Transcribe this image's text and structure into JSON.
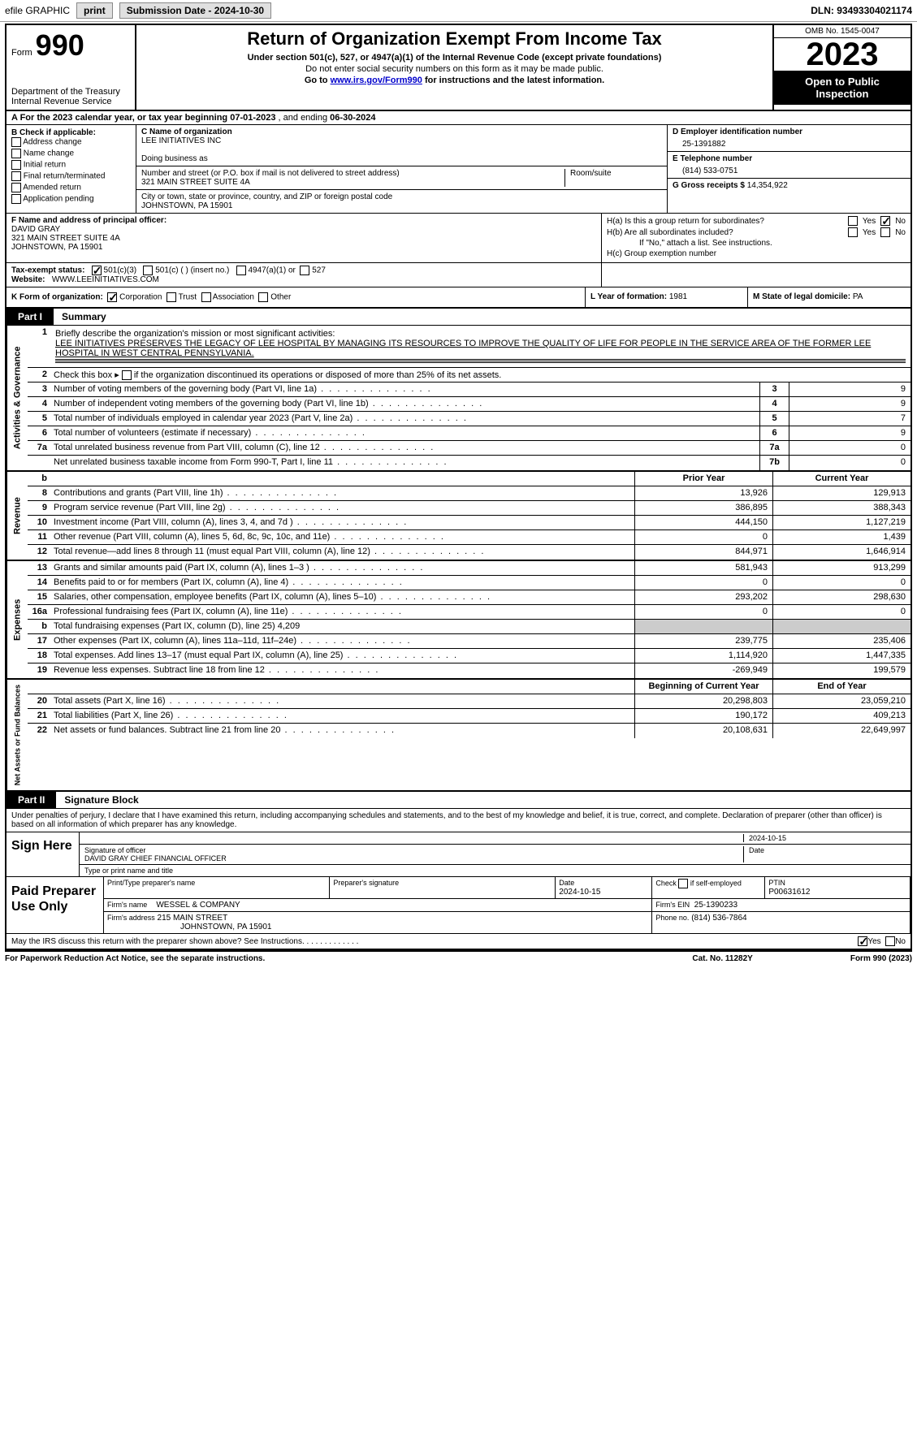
{
  "topbar": {
    "efile": "efile GRAPHIC",
    "print": "print",
    "submission": "Submission Date - 2024-10-30",
    "dln": "DLN: 93493304021174"
  },
  "header": {
    "form_label": "Form",
    "form_num": "990",
    "title": "Return of Organization Exempt From Income Tax",
    "subtitle": "Under section 501(c), 527, or 4947(a)(1) of the Internal Revenue Code (except private foundations)",
    "note1": "Do not enter social security numbers on this form as it may be made public.",
    "note2_pre": "Go to ",
    "note2_link": "www.irs.gov/Form990",
    "note2_post": " for instructions and the latest information.",
    "dept": "Department of the Treasury",
    "irs": "Internal Revenue Service",
    "omb": "OMB No. 1545-0047",
    "year": "2023",
    "open": "Open to Public Inspection"
  },
  "rowA": {
    "pre": "A For the 2023 calendar year, or tax year beginning ",
    "begin": "07-01-2023",
    "mid": " , and ending ",
    "end": "06-30-2024"
  },
  "B": {
    "label": "B Check if applicable:",
    "opts": [
      "Address change",
      "Name change",
      "Initial return",
      "Final return/terminated",
      "Amended return",
      "Application pending"
    ]
  },
  "C": {
    "name_lbl": "C Name of organization",
    "name": "LEE INITIATIVES INC",
    "dba_lbl": "Doing business as",
    "dba": "",
    "street_lbl": "Number and street (or P.O. box if mail is not delivered to street address)",
    "street": "321 MAIN STREET SUITE 4A",
    "room_lbl": "Room/suite",
    "city_lbl": "City or town, state or province, country, and ZIP or foreign postal code",
    "city": "JOHNSTOWN, PA  15901"
  },
  "D": {
    "lbl": "D Employer identification number",
    "val": "25-1391882"
  },
  "E": {
    "lbl": "E Telephone number",
    "val": "(814) 533-0751"
  },
  "G": {
    "lbl": "G Gross receipts $",
    "val": "14,354,922"
  },
  "F": {
    "lbl": "F  Name and address of principal officer:",
    "name": "DAVID GRAY",
    "addr1": "321 MAIN STREET SUITE 4A",
    "addr2": "JOHNSTOWN, PA  15901"
  },
  "H": {
    "a": "H(a)  Is this a group return for subordinates?",
    "b": "H(b)  Are all subordinates included?",
    "b_note": "If \"No,\" attach a list. See instructions.",
    "c": "H(c)  Group exemption number ",
    "yes": "Yes",
    "no": "No"
  },
  "I": {
    "lbl": "Tax-exempt status:",
    "opt1": "501(c)(3)",
    "opt2": "501(c) (  ) (insert no.)",
    "opt3": "4947(a)(1) or",
    "opt4": "527"
  },
  "J": {
    "lbl": "Website: ",
    "val": "WWW.LEEINITIATIVES.COM"
  },
  "K": {
    "lbl": "K Form of organization:",
    "opts": [
      "Corporation",
      "Trust",
      "Association",
      "Other"
    ]
  },
  "L": {
    "lbl": "L Year of formation:",
    "val": "1981"
  },
  "M": {
    "lbl": "M State of legal domicile:",
    "val": "PA"
  },
  "partI": {
    "num": "Part I",
    "title": "Summary"
  },
  "mission": {
    "lbl": "Briefly describe the organization's mission or most significant activities:",
    "txt": "LEE INITIATIVES PRESERVES THE LEGACY OF LEE HOSPITAL BY MANAGING ITS RESOURCES TO IMPROVE THE QUALITY OF LIFE FOR PEOPLE IN THE SERVICE AREA OF THE FORMER LEE HOSPITAL IN WEST CENTRAL PENNSYLVANIA."
  },
  "line2": "Check this box      if the organization discontinued its operations or disposed of more than 25% of its net assets.",
  "lines_top": [
    {
      "n": "3",
      "t": "Number of voting members of the governing body (Part VI, line 1a)",
      "k": "3",
      "v": "9"
    },
    {
      "n": "4",
      "t": "Number of independent voting members of the governing body (Part VI, line 1b)",
      "k": "4",
      "v": "9"
    },
    {
      "n": "5",
      "t": "Total number of individuals employed in calendar year 2023 (Part V, line 2a)",
      "k": "5",
      "v": "7"
    },
    {
      "n": "6",
      "t": "Total number of volunteers (estimate if necessary)",
      "k": "6",
      "v": "9"
    },
    {
      "n": "7a",
      "t": "Total unrelated business revenue from Part VIII, column (C), line 12",
      "k": "7a",
      "v": "0"
    },
    {
      "n": "",
      "t": "Net unrelated business taxable income from Form 990-T, Part I, line 11",
      "k": "7b",
      "v": "0"
    }
  ],
  "hdr_cols": {
    "b": "b",
    "prior": "Prior Year",
    "current": "Current Year"
  },
  "revenue": [
    {
      "n": "8",
      "t": "Contributions and grants (Part VIII, line 1h)",
      "p": "13,926",
      "c": "129,913"
    },
    {
      "n": "9",
      "t": "Program service revenue (Part VIII, line 2g)",
      "p": "386,895",
      "c": "388,343"
    },
    {
      "n": "10",
      "t": "Investment income (Part VIII, column (A), lines 3, 4, and 7d )",
      "p": "444,150",
      "c": "1,127,219"
    },
    {
      "n": "11",
      "t": "Other revenue (Part VIII, column (A), lines 5, 6d, 8c, 9c, 10c, and 11e)",
      "p": "0",
      "c": "1,439"
    },
    {
      "n": "12",
      "t": "Total revenue—add lines 8 through 11 (must equal Part VIII, column (A), line 12)",
      "p": "844,971",
      "c": "1,646,914"
    }
  ],
  "expenses": [
    {
      "n": "13",
      "t": "Grants and similar amounts paid (Part IX, column (A), lines 1–3 )",
      "p": "581,943",
      "c": "913,299"
    },
    {
      "n": "14",
      "t": "Benefits paid to or for members (Part IX, column (A), line 4)",
      "p": "0",
      "c": "0"
    },
    {
      "n": "15",
      "t": "Salaries, other compensation, employee benefits (Part IX, column (A), lines 5–10)",
      "p": "293,202",
      "c": "298,630"
    },
    {
      "n": "16a",
      "t": "Professional fundraising fees (Part IX, column (A), line 11e)",
      "p": "0",
      "c": "0"
    },
    {
      "n": "b",
      "t": "Total fundraising expenses (Part IX, column (D), line 25) 4,209",
      "grey": true
    },
    {
      "n": "17",
      "t": "Other expenses (Part IX, column (A), lines 11a–11d, 11f–24e)",
      "p": "239,775",
      "c": "235,406"
    },
    {
      "n": "18",
      "t": "Total expenses. Add lines 13–17 (must equal Part IX, column (A), line 25)",
      "p": "1,114,920",
      "c": "1,447,335"
    },
    {
      "n": "19",
      "t": "Revenue less expenses. Subtract line 18 from line 12",
      "p": "-269,949",
      "c": "199,579"
    }
  ],
  "netassets_hdr": {
    "begin": "Beginning of Current Year",
    "end": "End of Year"
  },
  "netassets": [
    {
      "n": "20",
      "t": "Total assets (Part X, line 16)",
      "p": "20,298,803",
      "c": "23,059,210"
    },
    {
      "n": "21",
      "t": "Total liabilities (Part X, line 26)",
      "p": "190,172",
      "c": "409,213"
    },
    {
      "n": "22",
      "t": "Net assets or fund balances. Subtract line 21 from line 20",
      "p": "20,108,631",
      "c": "22,649,997"
    }
  ],
  "vlabels": {
    "gov": "Activities & Governance",
    "rev": "Revenue",
    "exp": "Expenses",
    "net": "Net Assets or Fund Balances"
  },
  "partII": {
    "num": "Part II",
    "title": "Signature Block"
  },
  "sig": {
    "decl": "Under penalties of perjury, I declare that I have examined this return, including accompanying schedules and statements, and to the best of my knowledge and belief, it is true, correct, and complete. Declaration of preparer (other than officer) is based on all information of which preparer has any knowledge.",
    "sign_here": "Sign Here",
    "sig_lbl": "Signature of officer",
    "date_lbl": "Date",
    "date": "2024-10-15",
    "officer": "DAVID GRAY CHIEF FINANCIAL OFFICER",
    "type_lbl": "Type or print name and title"
  },
  "paid": {
    "lbl": "Paid Preparer Use Only",
    "print_lbl": "Print/Type preparer's name",
    "sig_lbl": "Preparer's signature",
    "date_lbl": "Date",
    "date": "2024-10-15",
    "check_lbl": "Check       if self-employed",
    "ptin_lbl": "PTIN",
    "ptin": "P00631612",
    "firm_name_lbl": "Firm's name",
    "firm_name": "WESSEL & COMPANY",
    "firm_ein_lbl": "Firm's EIN",
    "firm_ein": "25-1390233",
    "firm_addr_lbl": "Firm's address",
    "firm_addr": "215 MAIN STREET",
    "firm_city": "JOHNSTOWN, PA  15901",
    "phone_lbl": "Phone no.",
    "phone": "(814) 536-7864"
  },
  "discuss": {
    "txt": "May the IRS discuss this return with the preparer shown above? See Instructions.",
    "yes": "Yes",
    "no": "No"
  },
  "footer": {
    "pra": "For Paperwork Reduction Act Notice, see the separate instructions.",
    "cat": "Cat. No. 11282Y",
    "form": "Form 990 (2023)"
  }
}
